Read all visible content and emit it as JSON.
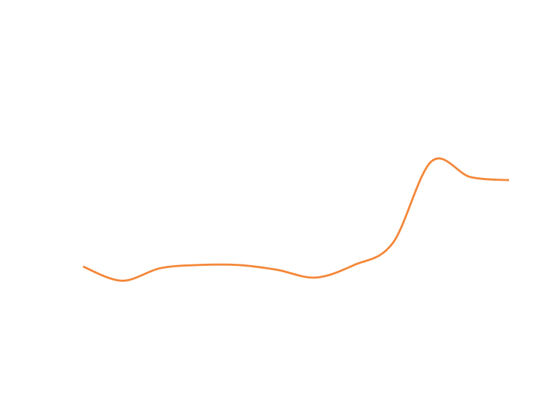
{
  "chart_data": {
    "type": "line",
    "title": "",
    "xlabel": "",
    "ylabel": "",
    "grid": false,
    "axes_visible": false,
    "line_color": "#F4883A",
    "x": [
      0,
      1,
      2,
      3,
      4,
      5,
      6,
      7,
      8,
      9,
      10,
      11
    ],
    "y": [
      7.05,
      7.5,
      7.1,
      7.0,
      7.0,
      7.15,
      7.4,
      7.0,
      6.3,
      3.7,
      4.2,
      4.3
    ],
    "xlim": [
      0,
      11
    ],
    "ylim": [
      0,
      10
    ]
  }
}
